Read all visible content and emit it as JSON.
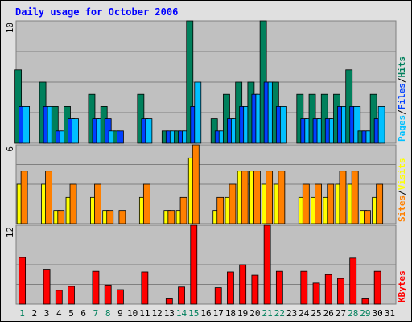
{
  "chart_data": {
    "type": "bar",
    "title": "Daily usage for October 2006",
    "x": [
      1,
      2,
      3,
      4,
      5,
      6,
      7,
      8,
      9,
      10,
      11,
      12,
      13,
      14,
      15,
      16,
      17,
      18,
      19,
      20,
      21,
      22,
      23,
      24,
      25,
      26,
      27,
      28,
      29,
      30,
      31
    ],
    "weekend_days": [
      1,
      7,
      8,
      14,
      15,
      21,
      22,
      28,
      29
    ],
    "panels": [
      {
        "name": "hits-files-pages",
        "ytick_label": "10",
        "ylim": [
          0,
          10
        ],
        "series": [
          {
            "name": "Hits",
            "color": "#00805c",
            "values": [
              6,
              0,
              5,
              3,
              3,
              0,
              4,
              3,
              1,
              0,
              4,
              0,
              1,
              1,
              10,
              0,
              2,
              4,
              5,
              5,
              10,
              5,
              0,
              4,
              4,
              4,
              4,
              6,
              1,
              4,
              0
            ]
          },
          {
            "name": "Files",
            "color": "#0040ff",
            "values": [
              3,
              0,
              3,
              1,
              2,
              0,
              2,
              2,
              1,
              0,
              2,
              0,
              1,
              1,
              3,
              0,
              1,
              2,
              3,
              4,
              5,
              3,
              0,
              2,
              2,
              2,
              3,
              3,
              1,
              2,
              0
            ]
          },
          {
            "name": "Pages",
            "color": "#00c0ff",
            "values": [
              3,
              0,
              3,
              1,
              2,
              0,
              2,
              1,
              0,
              0,
              2,
              0,
              1,
              1,
              5,
              0,
              1,
              2,
              3,
              4,
              5,
              3,
              0,
              2,
              2,
              2,
              3,
              3,
              1,
              3,
              0
            ]
          }
        ],
        "legend": [
          "Pages",
          "Files",
          "Hits"
        ]
      },
      {
        "name": "sites-visits",
        "ytick_label": "6",
        "ylim": [
          0,
          6
        ],
        "series": [
          {
            "name": "Visits",
            "color": "#ffff00",
            "values": [
              3,
              0,
              3,
              1,
              2,
              0,
              2,
              1,
              0,
              0,
              2,
              0,
              1,
              1,
              5,
              0,
              1,
              2,
              4,
              4,
              3,
              3,
              0,
              2,
              2,
              2,
              3,
              3,
              1,
              2,
              0
            ]
          },
          {
            "name": "Sites",
            "color": "#ff8000",
            "values": [
              4,
              0,
              4,
              1,
              3,
              0,
              3,
              1,
              1,
              0,
              3,
              0,
              1,
              2,
              6,
              0,
              2,
              3,
              4,
              4,
              4,
              4,
              0,
              3,
              3,
              3,
              4,
              4,
              1,
              3,
              0
            ]
          }
        ],
        "legend": [
          "Sites",
          "Visits"
        ]
      },
      {
        "name": "kbytes",
        "ytick_label": "12",
        "ylim": [
          0,
          12
        ],
        "series": [
          {
            "name": "KBytes",
            "color": "#ff0000",
            "values": [
              7.1,
              0,
              5.2,
              2.1,
              2.7,
              0,
              5.0,
              2.9,
              2.2,
              0,
              4.9,
              0,
              0.8,
              2.6,
              12.0,
              0,
              2.5,
              4.9,
              6.0,
              4.4,
              12.3,
              5.0,
              0,
              5.0,
              3.2,
              4.5,
              3.9,
              7.0,
              0.8,
              5.0,
              0
            ]
          }
        ],
        "legend": [
          "KBytes"
        ]
      }
    ],
    "colors": {
      "plot_background": "#c0c0c0",
      "frame_background": "#e0e0e0",
      "title": "#0000ff",
      "weekday_label": "#000000",
      "weekend_label": "#00805c",
      "legend_separator": "#000000"
    }
  }
}
